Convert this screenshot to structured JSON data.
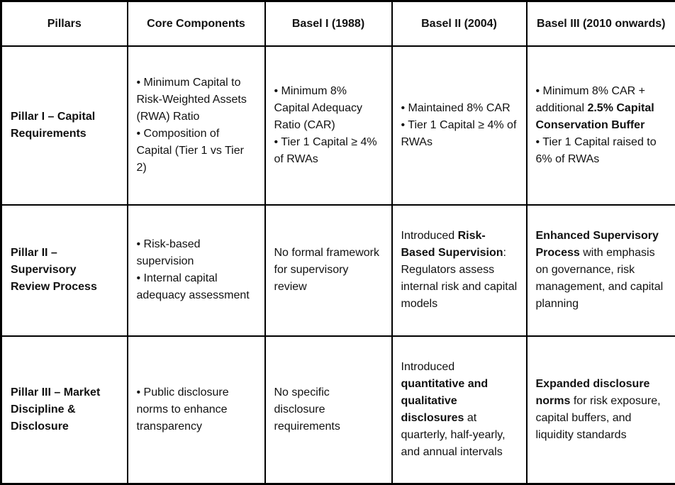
{
  "table": {
    "headers": [
      "Pillars",
      "Core Components",
      "Basel I (1988)",
      "Basel II (2004)",
      "Basel III (2010 onwards)"
    ],
    "rows": [
      {
        "pillar": "Pillar I – Capital Requirements",
        "core": [
          [
            {
              "t": "• Minimum Capital to Risk-Weighted Assets (RWA) Ratio",
              "b": false
            }
          ],
          [
            {
              "t": "• Composition of Capital (Tier 1 vs Tier 2)",
              "b": false
            }
          ]
        ],
        "basel1": [
          [
            {
              "t": "• Minimum 8% Capital Adequacy Ratio (CAR)",
              "b": false
            }
          ],
          [
            {
              "t": "• Tier 1 Capital ≥ 4% of RWAs",
              "b": false
            }
          ]
        ],
        "basel2": [
          [
            {
              "t": "• Maintained 8% CAR",
              "b": false
            }
          ],
          [
            {
              "t": "• Tier 1 Capital ≥ 4% of RWAs",
              "b": false
            }
          ]
        ],
        "basel3": [
          [
            {
              "t": "• Minimum 8% CAR + additional ",
              "b": false
            },
            {
              "t": "2.5% Capital Conservation Buffer",
              "b": true
            }
          ],
          [
            {
              "t": "• Tier 1 Capital raised to 6% of RWAs",
              "b": false
            }
          ]
        ]
      },
      {
        "pillar": "Pillar II – Supervisory Review Process",
        "core": [
          [
            {
              "t": "• Risk-based supervision",
              "b": false
            }
          ],
          [
            {
              "t": "• Internal capital adequacy assessment",
              "b": false
            }
          ]
        ],
        "basel1": [
          [
            {
              "t": "No formal framework for supervisory review",
              "b": false
            }
          ]
        ],
        "basel2": [
          [
            {
              "t": "Introduced ",
              "b": false
            },
            {
              "t": "Risk-Based Supervision",
              "b": true
            },
            {
              "t": ": Regulators assess internal risk and capital models",
              "b": false
            }
          ]
        ],
        "basel3": [
          [
            {
              "t": "Enhanced Supervisory Process",
              "b": true
            },
            {
              "t": " with emphasis on governance, risk management, and capital planning",
              "b": false
            }
          ]
        ]
      },
      {
        "pillar": "Pillar III – Market Discipline & Disclosure",
        "core": [
          [
            {
              "t": "• Public disclosure norms to enhance transparency",
              "b": false
            }
          ]
        ],
        "basel1": [
          [
            {
              "t": "No specific disclosure requirements",
              "b": false
            }
          ]
        ],
        "basel2": [
          [
            {
              "t": "Introduced ",
              "b": false
            },
            {
              "t": "quantitative and qualitative disclosures",
              "b": true
            },
            {
              "t": " at quarterly, half-yearly, and annual intervals",
              "b": false
            }
          ]
        ],
        "basel3": [
          [
            {
              "t": "Expanded disclosure norms",
              "b": true
            },
            {
              "t": " for risk exposure, capital buffers, and liquidity standards",
              "b": false
            }
          ]
        ]
      }
    ]
  },
  "colors": {
    "border": "#000000",
    "text": "#111111",
    "background": "#ffffff"
  }
}
